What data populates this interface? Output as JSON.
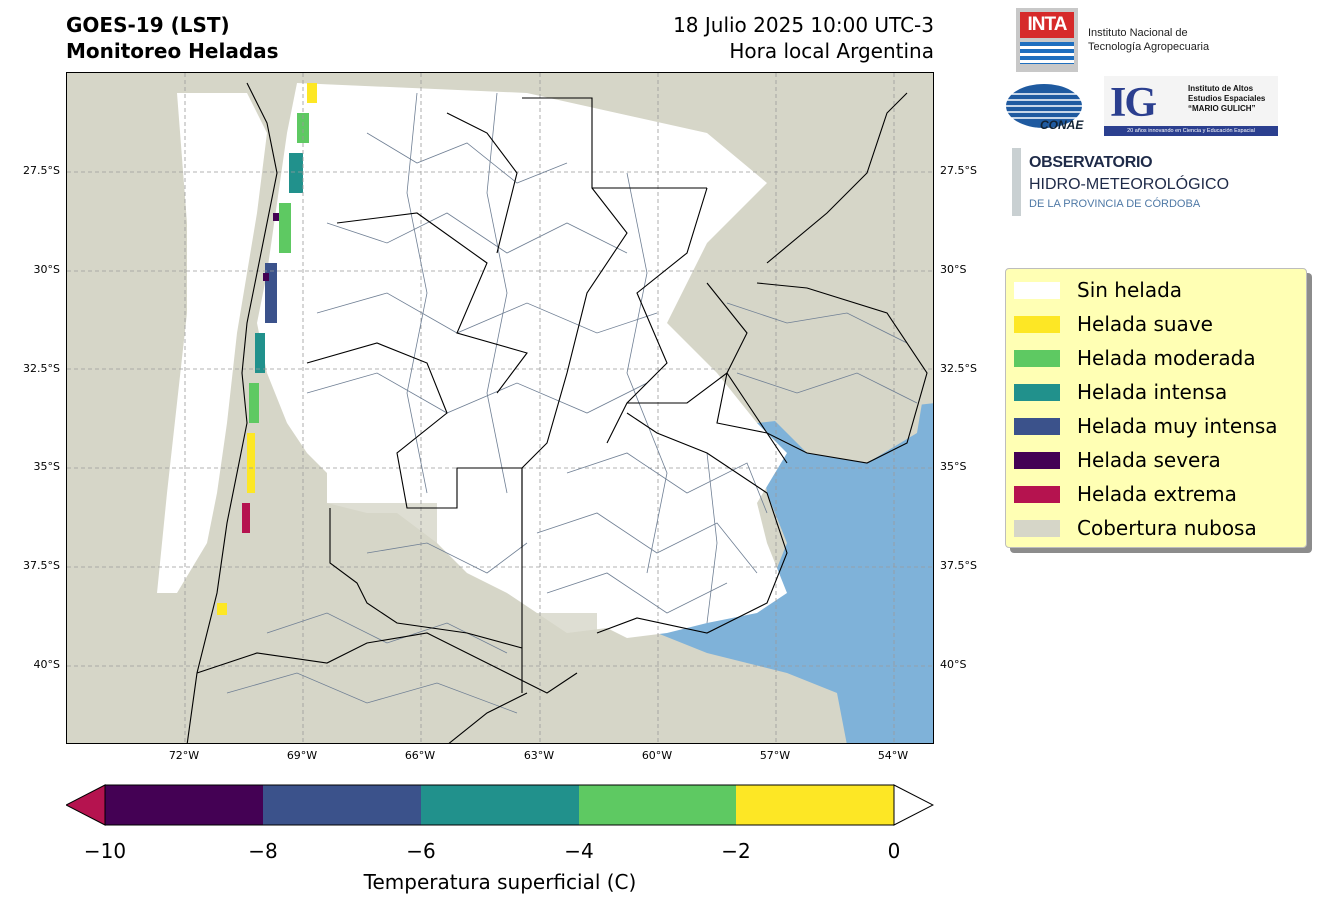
{
  "header": {
    "title_line1": "GOES-19 (LST)",
    "title_line2": "Monitoreo Heladas",
    "datetime": "18 Julio 2025 10:00 UTC-3",
    "timezone": "Hora local Argentina"
  },
  "map": {
    "extent": {
      "lon_min": -75,
      "lon_max": -53,
      "lat_min": -42,
      "lat_max": -25
    },
    "lat_ticks": [
      "27.5°S",
      "30°S",
      "32.5°S",
      "35°S",
      "37.5°S",
      "40°S"
    ],
    "lon_ticks": [
      "72°W",
      "69°W",
      "66°W",
      "63°W",
      "60°W",
      "57°W",
      "54°W"
    ],
    "gridlines": true,
    "colors": {
      "cloud": "#d6d6c8",
      "ocean": "#7fb2d9",
      "land_no_frost": "#ffffff",
      "province_border": "#000000",
      "department_border": "#6f7f94"
    }
  },
  "logos": {
    "inta": {
      "word": "INTA",
      "line1": "Instituto Nacional de",
      "line2": "Tecnología Agropecuaria"
    },
    "conae": {
      "word": "CONAE"
    },
    "ig": {
      "mark": "IG",
      "line1": "Instituto de Altos",
      "line2": "Estudios Espaciales",
      "line3": "“MARIO GULICH”",
      "band": "20 años innovando en Ciencia y Educación Espacial"
    },
    "observatorio": {
      "line1": "OBSERVATORIO",
      "line2": "HIDRO-METEOROLÓGICO",
      "line3": "DE LA PROVINCIA DE CÓRDOBA"
    }
  },
  "legend": {
    "items": [
      {
        "label": "Sin helada",
        "color": "#ffffff"
      },
      {
        "label": "Helada suave",
        "color": "#fde725"
      },
      {
        "label": "Helada moderada",
        "color": "#5ec962"
      },
      {
        "label": "Helada intensa",
        "color": "#21918c"
      },
      {
        "label": "Helada muy intensa",
        "color": "#3b528b"
      },
      {
        "label": "Helada severa",
        "color": "#440154"
      },
      {
        "label": "Helada extrema",
        "color": "#b5134f"
      },
      {
        "label": "Cobertura nubosa",
        "color": "#d6d6c8"
      }
    ]
  },
  "colorbar": {
    "label": "Temperatura superficial (C)",
    "ticks": [
      "−10",
      "−8",
      "−6",
      "−4",
      "−2",
      "0"
    ],
    "tick_values": [
      -10,
      -8,
      -6,
      -4,
      -2,
      0
    ],
    "colors": [
      "#440154",
      "#3b528b",
      "#21918c",
      "#5ec962",
      "#fde725"
    ],
    "under_color": "#b5134f",
    "over_color": "#ffffff"
  }
}
